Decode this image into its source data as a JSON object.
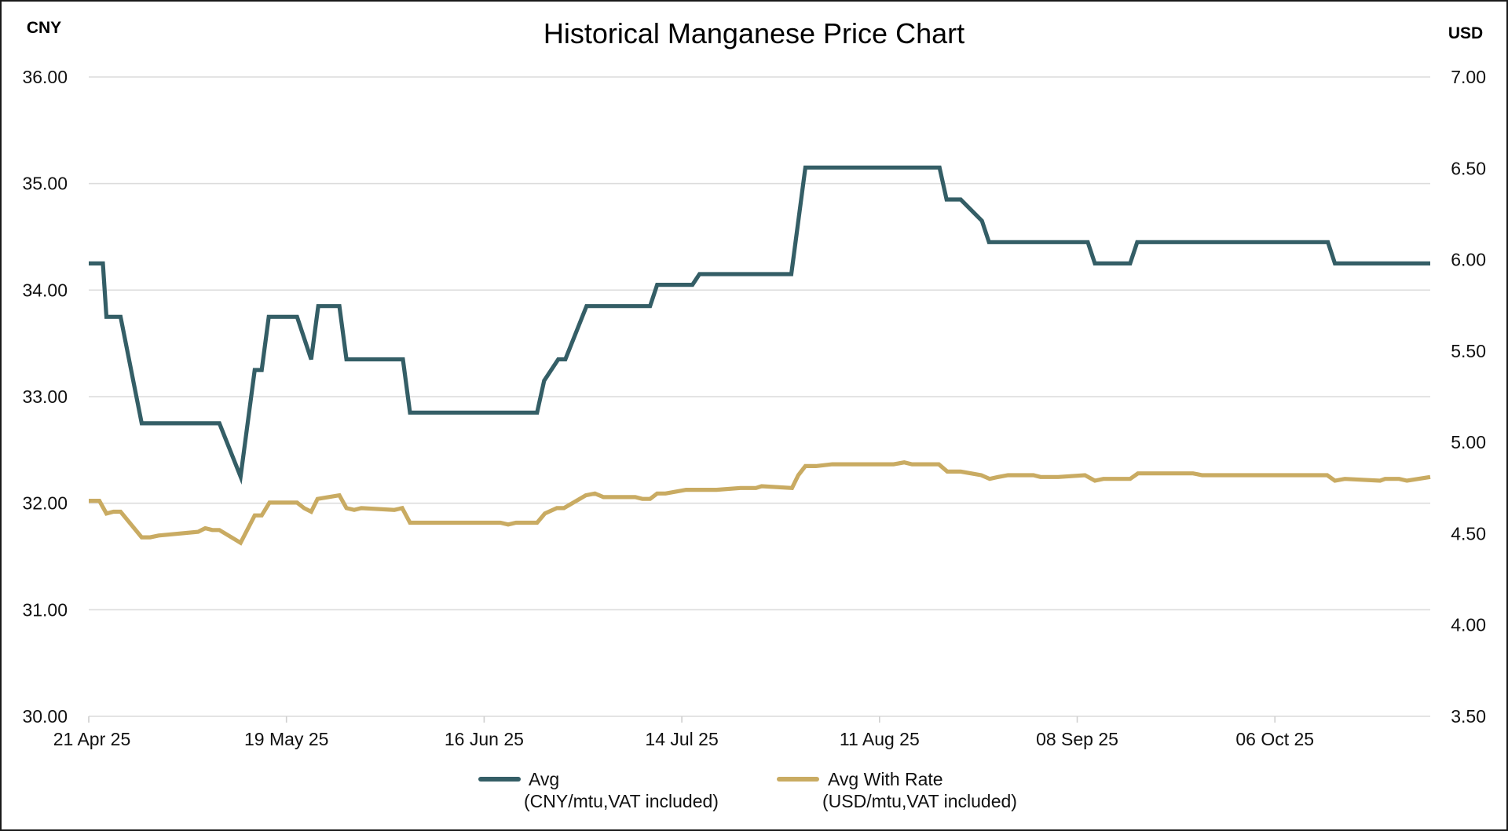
{
  "chart_data": {
    "type": "line",
    "title": "Historical Manganese Price Chart",
    "left_unit": "CNY",
    "right_unit": "USD",
    "x_start_date": "21 Apr 25",
    "x_unit": "days since 21 Apr 25",
    "xlim": [
      0,
      190
    ],
    "x_ticks": [
      {
        "day": 0,
        "label": "21 Apr 25"
      },
      {
        "day": 28,
        "label": "19 May 25"
      },
      {
        "day": 56,
        "label": "16 Jun 25"
      },
      {
        "day": 84,
        "label": "14 Jul 25"
      },
      {
        "day": 112,
        "label": "11 Aug 25"
      },
      {
        "day": 140,
        "label": "08 Sep 25"
      },
      {
        "day": 168,
        "label": "06 Oct 25"
      }
    ],
    "y_left": {
      "lim": [
        30,
        36
      ],
      "ticks": [
        "36.00",
        "35.00",
        "34.00",
        "33.00",
        "32.00",
        "31.00",
        "30.00"
      ]
    },
    "y_right": {
      "lim": [
        3.5,
        7.0
      ],
      "ticks": [
        "7.00",
        "6.50",
        "6.00",
        "5.50",
        "5.00",
        "4.50",
        "4.00",
        "3.50"
      ]
    },
    "grid": true,
    "legend_position": "bottom",
    "series": [
      {
        "name": "Avg",
        "legend_line1": "Avg",
        "legend_line2": "(CNY/mtu,VAT included)",
        "axis": "left",
        "color": "#345e66",
        "x": [
          0,
          2,
          2.5,
          4.5,
          7.5,
          18.5,
          21.5,
          23.5,
          24.5,
          25.5,
          29.5,
          31.5,
          32.5,
          35.5,
          36.5,
          44.5,
          45.5,
          63.5,
          64.5,
          66.5,
          67.5,
          70.5,
          79.5,
          80.5,
          85.5,
          86.5,
          99.5,
          101.5,
          120.5,
          121.5,
          123.5,
          126.5,
          127.5,
          141.5,
          142.5,
          147.5,
          148.5,
          175.5,
          176.5,
          190
        ],
        "y": [
          34.25,
          34.25,
          33.75,
          33.75,
          32.75,
          32.75,
          32.25,
          33.25,
          33.25,
          33.75,
          33.75,
          33.35,
          33.85,
          33.85,
          33.35,
          33.35,
          32.85,
          32.85,
          33.15,
          33.35,
          33.35,
          33.85,
          33.85,
          34.05,
          34.05,
          34.15,
          34.15,
          35.15,
          35.15,
          34.85,
          34.85,
          34.65,
          34.45,
          34.45,
          34.25,
          34.25,
          34.45,
          34.45,
          34.25,
          34.25
        ]
      },
      {
        "name": "Avg With Rate",
        "legend_line1": "Avg With Rate",
        "legend_line2": "(USD/mtu,VAT included)",
        "axis": "right",
        "color": "#c9ab62",
        "x": [
          0,
          1.5,
          2.5,
          3.5,
          4.5,
          7.5,
          8.7,
          9.9,
          15.5,
          16.5,
          17.5,
          18.5,
          21.5,
          23.5,
          24.5,
          25.6,
          29.5,
          30.5,
          31.5,
          32.4,
          35.5,
          36.5,
          37.6,
          38.6,
          43.3,
          44.4,
          45.5,
          58.3,
          59.4,
          60.5,
          63.5,
          64.6,
          66.3,
          67.3,
          70.4,
          71.7,
          72.9,
          77.4,
          78.4,
          79.5,
          80.5,
          81.7,
          84.6,
          88.9,
          92.3,
          94.5,
          95.3,
          99.6,
          100.5,
          101.5,
          103.0,
          105.3,
          114.0,
          115.5,
          116.6,
          120.4,
          121.6,
          123.5,
          126.4,
          127.6,
          128.8,
          130.2,
          133.8,
          134.8,
          137.3,
          141.1,
          142.5,
          143.7,
          147.5,
          148.6,
          156.4,
          157.7,
          175.4,
          176.5,
          177.9,
          182.9,
          183.6,
          185.6,
          186.7,
          190
        ],
        "y": [
          4.68,
          4.68,
          4.61,
          4.62,
          4.62,
          4.48,
          4.48,
          4.49,
          4.51,
          4.53,
          4.52,
          4.52,
          4.45,
          4.6,
          4.6,
          4.67,
          4.67,
          4.64,
          4.62,
          4.69,
          4.71,
          4.64,
          4.63,
          4.64,
          4.63,
          4.64,
          4.56,
          4.56,
          4.55,
          4.56,
          4.56,
          4.61,
          4.64,
          4.64,
          4.71,
          4.72,
          4.7,
          4.7,
          4.69,
          4.69,
          4.72,
          4.72,
          4.74,
          4.74,
          4.75,
          4.75,
          4.76,
          4.75,
          4.82,
          4.87,
          4.87,
          4.88,
          4.88,
          4.89,
          4.88,
          4.88,
          4.84,
          4.84,
          4.82,
          4.8,
          4.81,
          4.82,
          4.82,
          4.81,
          4.81,
          4.82,
          4.79,
          4.8,
          4.8,
          4.83,
          4.83,
          4.82,
          4.82,
          4.79,
          4.8,
          4.79,
          4.8,
          4.8,
          4.79,
          4.81
        ]
      }
    ]
  }
}
